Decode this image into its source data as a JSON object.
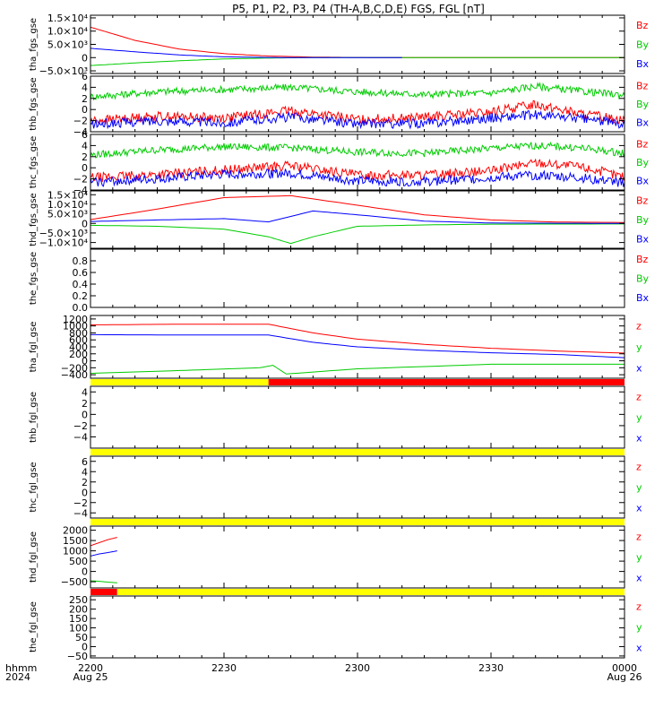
{
  "title": "P5, P1, P2, P3, P4 (TH-A,B,C,D,E) FGS, FGL [nT]",
  "colors": {
    "x": "#0000ff",
    "y": "#00cc00",
    "z": "#ff0000",
    "bar_yellow": "#ffff00",
    "bar_red": "#ff0000"
  },
  "time_axis": {
    "range": [
      "22:00",
      "24:00"
    ],
    "tick_times": [
      "22:00",
      "22:30",
      "23:00",
      "23:30",
      "24:00"
    ],
    "tick_labels": [
      "2200",
      "2230",
      "2300",
      "2330",
      "0000"
    ],
    "date_labels": [
      {
        "at": "22:00",
        "text": "Aug 25"
      },
      {
        "at": "24:00",
        "text": "Aug 26"
      }
    ],
    "left_label_top": "hhmm",
    "left_label_bottom": "2024"
  },
  "chart_data": [
    {
      "type": "line",
      "ylabel": "tha_fgs_gse",
      "ylim": [
        -6000,
        16000
      ],
      "ticks": [
        -5000,
        0,
        5000,
        10000,
        15000
      ],
      "tick_labels": [
        "−5.0×10³",
        "0",
        "5.0×10³",
        "1.0×10⁴",
        "1.5×10⁴"
      ],
      "legend": [
        "Bz",
        "By",
        "Bx"
      ],
      "series": [
        {
          "name": "Bz",
          "x": [
            "22:00",
            "22:10",
            "22:20",
            "22:30",
            "22:40",
            "22:50",
            "23:00",
            "23:10",
            "24:00"
          ],
          "values": [
            11500,
            6500,
            3200,
            1500,
            600,
            200,
            50,
            0,
            0
          ]
        },
        {
          "name": "By",
          "x": [
            "22:00",
            "22:10",
            "22:20",
            "22:30",
            "22:40",
            "22:50",
            "23:00",
            "23:10",
            "24:00"
          ],
          "values": [
            -3000,
            -2000,
            -1200,
            -500,
            -150,
            0,
            0,
            0,
            0
          ]
        },
        {
          "name": "Bx",
          "x": [
            "22:00",
            "22:10",
            "22:20",
            "22:30",
            "22:40",
            "22:50",
            "23:00",
            "23:10"
          ],
          "values": [
            3500,
            2200,
            1000,
            300,
            50,
            0,
            0,
            0
          ]
        }
      ]
    },
    {
      "type": "line",
      "ylabel": "thb_fgs_gse",
      "ylim": [
        -4,
        6
      ],
      "ticks": [
        -4,
        -2,
        0,
        2,
        4,
        6
      ],
      "tick_labels": [
        "−4",
        "−2",
        "0",
        "2",
        "4",
        "6"
      ],
      "legend": [
        "Bz",
        "By",
        "Bx"
      ],
      "series": [
        {
          "name": "By",
          "x": [
            "22:00",
            "22:15",
            "22:30",
            "22:45",
            "23:00",
            "23:15",
            "23:30",
            "23:40",
            "23:50",
            "24:00"
          ],
          "values": [
            2.3,
            3.2,
            3.6,
            4.0,
            3.2,
            2.7,
            3.0,
            4.2,
            3.3,
            2.6
          ]
        },
        {
          "name": "Bz",
          "x": [
            "22:00",
            "22:15",
            "22:30",
            "22:45",
            "23:00",
            "23:15",
            "23:30",
            "23:40",
            "23:50",
            "24:00"
          ],
          "values": [
            -2.0,
            -1.2,
            -1.5,
            -0.2,
            -1.8,
            -1.4,
            -0.5,
            1.0,
            -0.8,
            -1.8
          ]
        },
        {
          "name": "Bx",
          "x": [
            "22:00",
            "22:15",
            "22:30",
            "22:45",
            "23:00",
            "23:15",
            "23:30",
            "23:40",
            "23:50",
            "24:00"
          ],
          "values": [
            -2.7,
            -2.0,
            -2.4,
            -1.3,
            -2.6,
            -2.5,
            -1.5,
            -1.0,
            -1.6,
            -2.6
          ]
        }
      ]
    },
    {
      "type": "line",
      "ylabel": "thc_fgs_gse",
      "ylim": [
        -4,
        6
      ],
      "ticks": [
        -4,
        -2,
        0,
        2,
        4,
        6
      ],
      "tick_labels": [
        "−4",
        "−2",
        "0",
        "2",
        "4",
        "6"
      ],
      "legend": [
        "Bz",
        "By",
        "Bx"
      ],
      "series": [
        {
          "name": "By",
          "x": [
            "22:00",
            "22:15",
            "22:30",
            "22:45",
            "23:00",
            "23:15",
            "23:30",
            "23:40",
            "23:50",
            "24:00"
          ],
          "values": [
            2.3,
            3.2,
            3.8,
            3.6,
            2.8,
            2.6,
            3.5,
            4.0,
            3.6,
            2.6
          ]
        },
        {
          "name": "Bz",
          "x": [
            "22:00",
            "22:15",
            "22:30",
            "22:45",
            "23:00",
            "23:15",
            "23:30",
            "23:40",
            "23:50",
            "24:00"
          ],
          "values": [
            -1.8,
            -1.2,
            -0.4,
            0.4,
            -1.3,
            -1.3,
            -0.6,
            1.0,
            0.2,
            -1.6
          ]
        },
        {
          "name": "Bx",
          "x": [
            "22:00",
            "22:15",
            "22:30",
            "22:45",
            "23:00",
            "23:15",
            "23:30",
            "23:40",
            "23:50",
            "24:00"
          ],
          "values": [
            -2.6,
            -2.0,
            -1.2,
            -1.0,
            -2.4,
            -2.5,
            -1.8,
            -1.3,
            -1.8,
            -2.7
          ]
        }
      ]
    },
    {
      "type": "line",
      "ylabel": "thd_fgs_gse",
      "ylim": [
        -13000,
        17000
      ],
      "ticks": [
        -10000,
        -5000,
        0,
        5000,
        10000,
        15000
      ],
      "tick_labels": [
        "−1.0×10⁴",
        "−5.0×10³",
        "0",
        "5.0×10³",
        "1.0×10⁴",
        "1.5×10⁴"
      ],
      "legend": [
        "Bz",
        "By",
        "Bx"
      ],
      "series": [
        {
          "name": "Bz",
          "x": [
            "22:00",
            "22:15",
            "22:30",
            "22:45",
            "23:00",
            "23:15",
            "23:30",
            "23:45",
            "24:00"
          ],
          "values": [
            2000,
            7500,
            13500,
            14500,
            9500,
            4500,
            1800,
            700,
            500
          ]
        },
        {
          "name": "By",
          "x": [
            "22:00",
            "22:15",
            "22:30",
            "22:40",
            "22:45",
            "22:50",
            "23:00",
            "23:15",
            "23:30",
            "24:00"
          ],
          "values": [
            -1000,
            -1500,
            -3000,
            -7000,
            -10500,
            -7000,
            -1500,
            -800,
            -400,
            -300
          ]
        },
        {
          "name": "Bx",
          "x": [
            "22:00",
            "22:15",
            "22:30",
            "22:40",
            "22:50",
            "23:00",
            "23:15",
            "23:30",
            "24:00"
          ],
          "values": [
            1000,
            1800,
            2500,
            800,
            6500,
            4500,
            1200,
            200,
            0
          ]
        }
      ]
    },
    {
      "type": "line",
      "ylabel": "the_fgs_gse",
      "ylim": [
        0,
        1
      ],
      "ticks": [
        0,
        0.2,
        0.4,
        0.6,
        0.8
      ],
      "tick_labels": [
        "0.0",
        "0.2",
        "0.4",
        "0.6",
        "0.8"
      ],
      "legend": [
        "Bz",
        "By",
        "Bx"
      ],
      "series": []
    },
    {
      "type": "line",
      "ylabel": "tha_fgl_gse",
      "ylim": [
        -500,
        1300
      ],
      "ticks": [
        -400,
        -200,
        0,
        200,
        400,
        600,
        800,
        1000,
        1200
      ],
      "tick_labels": [
        "−400",
        "−200",
        "0",
        "200",
        "400",
        "600",
        "800",
        "1000",
        "1200"
      ],
      "legend": [
        "z",
        "y",
        "x"
      ],
      "bar_segments": [
        {
          "from": "22:00",
          "to": "22:40",
          "color": "yellow"
        },
        {
          "from": "22:40",
          "to": "24:00",
          "color": "red"
        }
      ],
      "series": [
        {
          "name": "z",
          "x": [
            "22:00",
            "22:20",
            "22:40",
            "22:50",
            "23:00",
            "23:15",
            "23:30",
            "23:45",
            "24:00"
          ],
          "values": [
            1030,
            1050,
            1050,
            800,
            620,
            470,
            360,
            280,
            220
          ]
        },
        {
          "name": "y",
          "x": [
            "22:00",
            "22:20",
            "22:38",
            "22:41",
            "22:44",
            "23:00",
            "23:30",
            "24:00"
          ],
          "values": [
            -360,
            -280,
            -200,
            -130,
            -380,
            -230,
            -100,
            -100
          ]
        },
        {
          "name": "x",
          "x": [
            "22:00",
            "22:20",
            "22:40",
            "22:50",
            "23:00",
            "23:15",
            "23:30",
            "23:45",
            "24:00"
          ],
          "values": [
            750,
            740,
            740,
            530,
            400,
            300,
            230,
            180,
            90
          ]
        }
      ]
    },
    {
      "type": "line",
      "ylabel": "thb_fgl_gse",
      "ylim": [
        -6,
        5
      ],
      "ticks": [
        -4,
        -2,
        0,
        2,
        4
      ],
      "tick_labels": [
        "−4",
        "−2",
        "0",
        "2",
        "4"
      ],
      "legend": [
        "z",
        "y",
        "x"
      ],
      "bar_segments": [
        {
          "from": "22:00",
          "to": "24:00",
          "color": "yellow"
        }
      ],
      "series": []
    },
    {
      "type": "line",
      "ylabel": "thc_fgl_gse",
      "ylim": [
        -5,
        7
      ],
      "ticks": [
        -4,
        -2,
        0,
        2,
        4,
        6
      ],
      "tick_labels": [
        "−4",
        "−2",
        "0",
        "2",
        "4",
        "6"
      ],
      "legend": [
        "z",
        "y",
        "x"
      ],
      "bar_segments": [
        {
          "from": "22:00",
          "to": "24:00",
          "color": "yellow"
        }
      ],
      "series": []
    },
    {
      "type": "line",
      "ylabel": "thd_fgl_gse",
      "ylim": [
        -800,
        2200
      ],
      "ticks": [
        -500,
        0,
        500,
        1000,
        1500,
        2000
      ],
      "tick_labels": [
        "−500",
        "0",
        "500",
        "1000",
        "1500",
        "2000"
      ],
      "legend": [
        "z",
        "y",
        "x"
      ],
      "bar_segments": [
        {
          "from": "22:00",
          "to": "22:06",
          "color": "red"
        },
        {
          "from": "22:06",
          "to": "24:00",
          "color": "yellow"
        }
      ],
      "series": [
        {
          "name": "z",
          "x": [
            "22:00",
            "22:02",
            "22:04",
            "22:06"
          ],
          "values": [
            1250,
            1400,
            1550,
            1650
          ]
        },
        {
          "name": "x",
          "x": [
            "22:00",
            "22:02",
            "22:04",
            "22:06"
          ],
          "values": [
            750,
            850,
            920,
            1000
          ]
        },
        {
          "name": "y",
          "x": [
            "22:00",
            "22:02",
            "22:04",
            "22:06"
          ],
          "values": [
            -450,
            -480,
            -520,
            -550
          ]
        }
      ]
    },
    {
      "type": "line",
      "ylabel": "the_fgl_gse",
      "ylim": [
        -60,
        270
      ],
      "ticks": [
        -50,
        0,
        50,
        100,
        150,
        200,
        250
      ],
      "tick_labels": [
        "−50",
        "0",
        "50",
        "100",
        "150",
        "200",
        "250"
      ],
      "legend": [
        "z",
        "y",
        "x"
      ],
      "bar_segments": [
        {
          "from": "22:00",
          "to": "24:00",
          "color": "yellow"
        }
      ],
      "series": []
    }
  ]
}
